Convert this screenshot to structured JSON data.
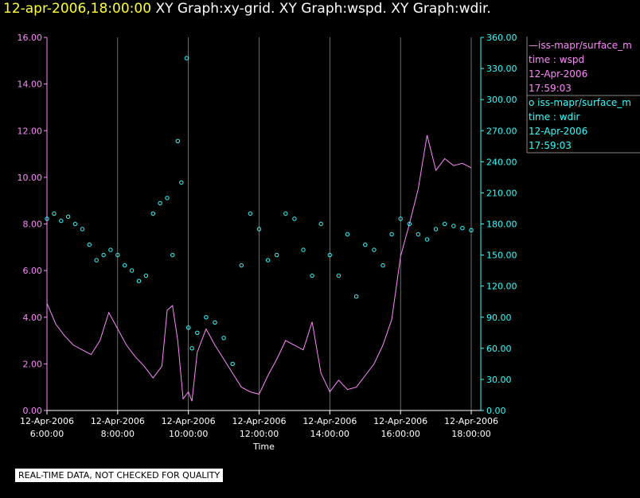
{
  "header": {
    "timestamp": "12-apr-2006,18:00:00",
    "graphs": "XY Graph:xy-grid.  XY Graph:wspd.  XY Graph:wdir."
  },
  "legend": {
    "series1": {
      "name": "—iss-mapr/surface_m",
      "var": "time : wspd",
      "date": "12-Apr-2006",
      "time": "17:59:03"
    },
    "series2": {
      "name": "o  iss-mapr/surface_m",
      "var": "time : wdir",
      "date": "12-Apr-2006",
      "time": "17:59:03"
    }
  },
  "notice": "REAL-TIME DATA, NOT CHECKED FOR QUALITY",
  "colors": {
    "wspd": "#ff88ff",
    "wdir": "#33ffff",
    "grid": "#ffffff",
    "title_time": "#ffff33"
  },
  "chart_data": {
    "type": "line",
    "xlabel": "Time",
    "x_ticks": [
      {
        "hour": 6,
        "date": "12-Apr-2006",
        "time": "6:00:00"
      },
      {
        "hour": 8,
        "date": "12-Apr-2006",
        "time": "8:00:00"
      },
      {
        "hour": 10,
        "date": "12-Apr-2006",
        "time": "10:00:00"
      },
      {
        "hour": 12,
        "date": "12-Apr-2006",
        "time": "12:00:00"
      },
      {
        "hour": 14,
        "date": "12-Apr-2006",
        "time": "14:00:00"
      },
      {
        "hour": 16,
        "date": "12-Apr-2006",
        "time": "16:00:00"
      },
      {
        "hour": 18,
        "date": "12-Apr-2006",
        "time": "18:00:00"
      }
    ],
    "xlim": [
      6,
      18
    ],
    "left_axis": {
      "ylim": [
        0,
        16
      ],
      "ticks": [
        "0.00",
        "2.00",
        "4.00",
        "6.00",
        "8.00",
        "10.00",
        "12.00",
        "14.00",
        "16.00"
      ]
    },
    "right_axis": {
      "ylim": [
        0,
        360
      ],
      "ticks": [
        "0.00",
        "30.00",
        "60.00",
        "90.00",
        "120.00",
        "150.00",
        "180.00",
        "210.00",
        "240.00",
        "270.00",
        "300.00",
        "330.00",
        "360.00"
      ]
    },
    "series": [
      {
        "name": "wspd",
        "style": "line",
        "axis": "left",
        "x": [
          6.0,
          6.25,
          6.5,
          6.75,
          7.0,
          7.25,
          7.5,
          7.75,
          8.0,
          8.25,
          8.5,
          8.75,
          9.0,
          9.25,
          9.4,
          9.55,
          9.7,
          9.85,
          10.0,
          10.1,
          10.25,
          10.5,
          10.75,
          11.0,
          11.25,
          11.5,
          11.75,
          12.0,
          12.25,
          12.5,
          12.75,
          13.0,
          13.25,
          13.5,
          13.75,
          14.0,
          14.25,
          14.5,
          14.75,
          15.0,
          15.25,
          15.5,
          15.75,
          16.0,
          16.25,
          16.5,
          16.75,
          17.0,
          17.25,
          17.5,
          17.75,
          18.0
        ],
        "values": [
          4.6,
          3.7,
          3.2,
          2.8,
          2.6,
          2.4,
          3.0,
          4.2,
          3.5,
          2.8,
          2.3,
          1.9,
          1.4,
          1.9,
          4.3,
          4.5,
          3.0,
          0.5,
          0.8,
          0.4,
          2.5,
          3.5,
          2.8,
          2.2,
          1.6,
          1.0,
          0.8,
          0.7,
          1.5,
          2.2,
          3.0,
          2.8,
          2.6,
          3.8,
          1.6,
          0.8,
          1.3,
          0.9,
          1.0,
          1.5,
          2.0,
          2.8,
          3.9,
          6.6,
          8.0,
          9.5,
          11.8,
          10.3,
          10.8,
          10.5,
          10.6,
          10.4
        ]
      },
      {
        "name": "wdir",
        "style": "scatter",
        "axis": "right",
        "x": [
          6.0,
          6.2,
          6.4,
          6.6,
          6.8,
          7.0,
          7.2,
          7.4,
          7.6,
          7.8,
          8.0,
          8.2,
          8.4,
          8.6,
          8.8,
          9.0,
          9.2,
          9.4,
          9.55,
          9.7,
          9.8,
          9.95,
          10.0,
          10.1,
          10.25,
          10.5,
          10.75,
          11.0,
          11.25,
          11.5,
          11.75,
          12.0,
          12.25,
          12.5,
          12.75,
          13.0,
          13.25,
          13.5,
          13.75,
          14.0,
          14.25,
          14.5,
          14.75,
          15.0,
          15.25,
          15.5,
          15.75,
          16.0,
          16.25,
          16.5,
          16.75,
          17.0,
          17.25,
          17.5,
          17.75,
          18.0
        ],
        "values": [
          185,
          190,
          183,
          187,
          180,
          175,
          160,
          145,
          150,
          155,
          150,
          140,
          135,
          125,
          130,
          190,
          200,
          205,
          150,
          260,
          220,
          340,
          80,
          60,
          75,
          90,
          85,
          70,
          45,
          140,
          190,
          175,
          145,
          150,
          190,
          185,
          155,
          130,
          180,
          150,
          130,
          170,
          110,
          160,
          155,
          140,
          170,
          185,
          180,
          170,
          165,
          175,
          180,
          178,
          176,
          174
        ]
      }
    ]
  }
}
